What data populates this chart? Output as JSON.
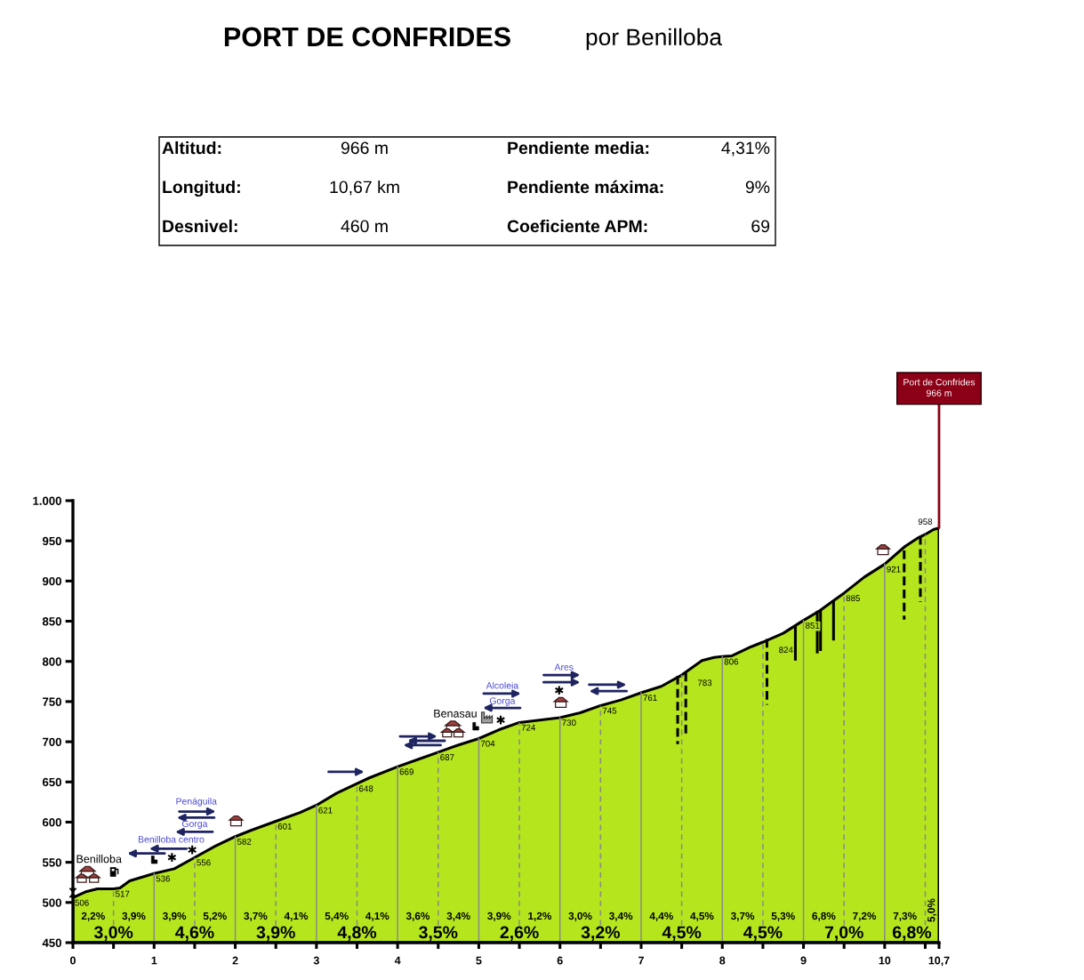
{
  "chart_data": {
    "type": "area",
    "title": "PORT DE CONFRIDES",
    "subtitle": "por Benilloba",
    "color": "#b5e61d",
    "x": [
      0,
      0.15,
      0.3,
      0.5,
      0.58,
      0.7,
      1,
      1.25,
      1.5,
      1.75,
      2,
      2.2,
      2.5,
      2.8,
      3,
      3.25,
      3.5,
      3.65,
      4,
      4.25,
      4.5,
      4.75,
      5,
      5.25,
      5.5,
      5.75,
      6,
      6.25,
      6.5,
      6.75,
      7,
      7.25,
      7.5,
      7.75,
      7.9,
      8,
      8.12,
      8.35,
      8.5,
      8.75,
      9,
      9.2,
      9.35,
      9.5,
      9.75,
      10,
      10.25,
      10.4,
      10.5,
      10.6,
      10.67
    ],
    "values": [
      506,
      513,
      517,
      517,
      518,
      527,
      536,
      542,
      556,
      570,
      582,
      590,
      601,
      612,
      621,
      636,
      648,
      655,
      669,
      678,
      687,
      696,
      704,
      715,
      724,
      727,
      730,
      736,
      745,
      752,
      761,
      769,
      783,
      801,
      805,
      806,
      807,
      818,
      824,
      835,
      851,
      863,
      874,
      885,
      905,
      921,
      943,
      953,
      958,
      964,
      966
    ],
    "value_labels": [
      "506",
      null,
      null,
      "517",
      null,
      null,
      "536",
      null,
      "556",
      null,
      "582",
      null,
      "601",
      null,
      "621",
      null,
      "648",
      null,
      "669",
      null,
      "687",
      null,
      "704",
      null,
      "724",
      null,
      "730",
      null,
      "745",
      null,
      "761",
      null,
      "783",
      null,
      null,
      "806",
      null,
      null,
      "824",
      null,
      "851",
      null,
      null,
      "885",
      null,
      "921",
      null,
      null,
      "958",
      null,
      null
    ],
    "xlim": [
      0,
      10.67
    ],
    "xticks": [
      0,
      {
        "value": 0.5,
        "label": null
      },
      1,
      {
        "value": 1.5,
        "label": null
      },
      2,
      {
        "value": 2.5,
        "label": null
      },
      3,
      {
        "value": 3.5,
        "label": null
      },
      4,
      {
        "value": 4.5,
        "label": null
      },
      5,
      {
        "value": 5.5,
        "label": null
      },
      6,
      {
        "value": 6.5,
        "label": null
      },
      7,
      {
        "value": 7.5,
        "label": null
      },
      8,
      {
        "value": 8.5,
        "label": null
      },
      9,
      {
        "value": 9.5,
        "label": null
      },
      10,
      {
        "value": 10.5,
        "label": null
      },
      {
        "value": 10.67,
        "label": "10,7"
      }
    ],
    "ylim": [
      450,
      1000
    ],
    "yticks": [
      450,
      500,
      550,
      600,
      650,
      700,
      750,
      800,
      850,
      900,
      950,
      {
        "value": 1000,
        "label": "1.000"
      }
    ],
    "ref_lines": [
      {
        "axis": "x",
        "value": 0.5,
        "color": "#8a8a8a",
        "line_style": "dashed"
      },
      {
        "axis": "x",
        "value": 1,
        "color": "#8a8a8a",
        "line_style": "solid"
      },
      {
        "axis": "x",
        "value": 1.5,
        "color": "#8a8a8a",
        "line_style": "dashed"
      },
      {
        "axis": "x",
        "value": 2,
        "color": "#8a8a8a",
        "line_style": "solid"
      },
      {
        "axis": "x",
        "value": 2.5,
        "color": "#8a8a8a",
        "line_style": "dashed"
      },
      {
        "axis": "x",
        "value": 3,
        "color": "#8a8a8a",
        "line_style": "solid"
      },
      {
        "axis": "x",
        "value": 3.5,
        "color": "#8a8a8a",
        "line_style": "dashed"
      },
      {
        "axis": "x",
        "value": 4,
        "color": "#8a8a8a",
        "line_style": "solid"
      },
      {
        "axis": "x",
        "value": 4.5,
        "color": "#8a8a8a",
        "line_style": "dashed"
      },
      {
        "axis": "x",
        "value": 5,
        "color": "#8a8a8a",
        "line_style": "solid"
      },
      {
        "axis": "x",
        "value": 5.5,
        "color": "#8a8a8a",
        "line_style": "dashed"
      },
      {
        "axis": "x",
        "value": 6,
        "color": "#8a8a8a",
        "line_style": "solid"
      },
      {
        "axis": "x",
        "value": 6.5,
        "color": "#8a8a8a",
        "line_style": "dashed"
      },
      {
        "axis": "x",
        "value": 7,
        "color": "#8a8a8a",
        "line_style": "solid"
      },
      {
        "axis": "x",
        "value": 7.5,
        "color": "#8a8a8a",
        "line_style": "dashed"
      },
      {
        "axis": "x",
        "value": 8,
        "color": "#8a8a8a",
        "line_style": "solid"
      },
      {
        "axis": "x",
        "value": 8.5,
        "color": "#8a8a8a",
        "line_style": "dashed"
      },
      {
        "axis": "x",
        "value": 9,
        "color": "#8a8a8a",
        "line_style": "solid"
      },
      {
        "axis": "x",
        "value": 9.5,
        "color": "#8a8a8a",
        "line_style": "dashed"
      },
      {
        "axis": "x",
        "value": 10,
        "color": "#8a8a8a",
        "line_style": "solid"
      },
      {
        "axis": "x",
        "value": 10.5,
        "color": "#8a8a8a",
        "line_style": "dashed"
      }
    ],
    "annotations": [
      "Altitud:",
      "966 m",
      "Pendiente media:",
      "4,31%",
      "Longitud:",
      "10,67 km",
      "Pendiente máxima:",
      "9%",
      "Desnivel:",
      "460 m",
      "Coeficiente APM:",
      "69",
      {
        "text": "Port de Confrides\n966 m",
        "x": 10.67,
        "y": 966
      },
      "Benilloba",
      "Benilloba centro",
      "Gorga",
      "Penáguila",
      "Benasau",
      "Alcoleia",
      "Gorga",
      "Ares",
      "2,2%",
      "3,9%",
      "3,9%",
      "5,2%",
      "3,7%",
      "4,1%",
      "5,4%",
      "4,1%",
      "3,6%",
      "3,4%",
      "3,9%",
      "1,2%",
      "3,0%",
      "3,4%",
      "4,4%",
      "4,5%",
      "3,7%",
      "5,3%",
      "6,8%",
      "7,2%",
      "7,3%",
      "5,0%",
      "3,0%",
      "4,6%",
      "3,9%",
      "4,8%",
      "3,5%",
      "2,6%",
      "3,2%",
      "4,5%",
      "4,5%",
      "7,0%",
      "6,8%"
    ]
  }
}
